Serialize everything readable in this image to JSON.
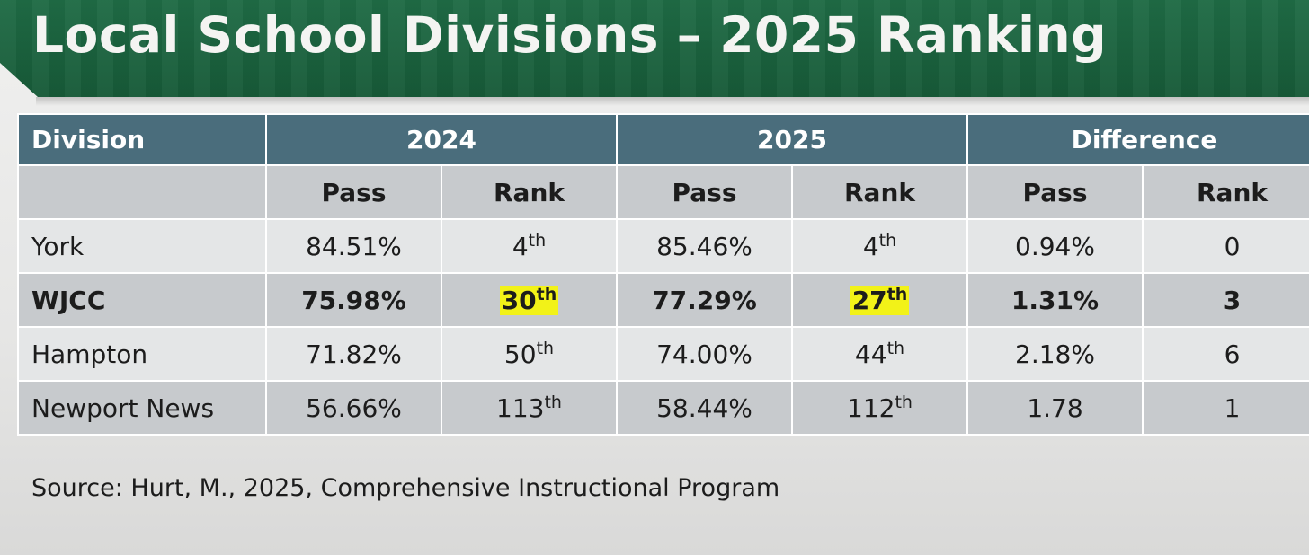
{
  "header": {
    "title": "Local School Divisions – 2025 Ranking",
    "background_color": "#1f6b45"
  },
  "table": {
    "header_color": "#4a6d7c",
    "highlight_color": "#f2f218",
    "group_headers": [
      "Division",
      "2024",
      "2025",
      "Difference"
    ],
    "sub_headers": [
      "",
      "Pass",
      "Rank",
      "Pass",
      "Rank",
      "Pass",
      "Rank"
    ],
    "rows": [
      {
        "division": "York",
        "pass_2024": "84.51%",
        "rank_2024": {
          "num": "4",
          "suffix": "th"
        },
        "pass_2025": "85.46%",
        "rank_2025": {
          "num": "4",
          "suffix": "th"
        },
        "pass_diff": "0.94%",
        "rank_diff": "0"
      },
      {
        "division": "WJCC",
        "pass_2024": "75.98%",
        "rank_2024": {
          "num": "30",
          "suffix": "th"
        },
        "pass_2025": "77.29%",
        "rank_2025": {
          "num": "27",
          "suffix": "th"
        },
        "pass_diff": "1.31%",
        "rank_diff": "3"
      },
      {
        "division": "Hampton",
        "pass_2024": "71.82%",
        "rank_2024": {
          "num": "50",
          "suffix": "th"
        },
        "pass_2025": "74.00%",
        "rank_2025": {
          "num": "44",
          "suffix": "th"
        },
        "pass_diff": "2.18%",
        "rank_diff": "6"
      },
      {
        "division": "Newport News",
        "pass_2024": "56.66%",
        "rank_2024": {
          "num": "113",
          "suffix": "th"
        },
        "pass_2025": "58.44%",
        "rank_2025": {
          "num": "112",
          "suffix": "th"
        },
        "pass_diff": "1.78",
        "rank_diff": "1"
      }
    ]
  },
  "source": "Source: Hurt, M., 2025, Comprehensive Instructional Program"
}
